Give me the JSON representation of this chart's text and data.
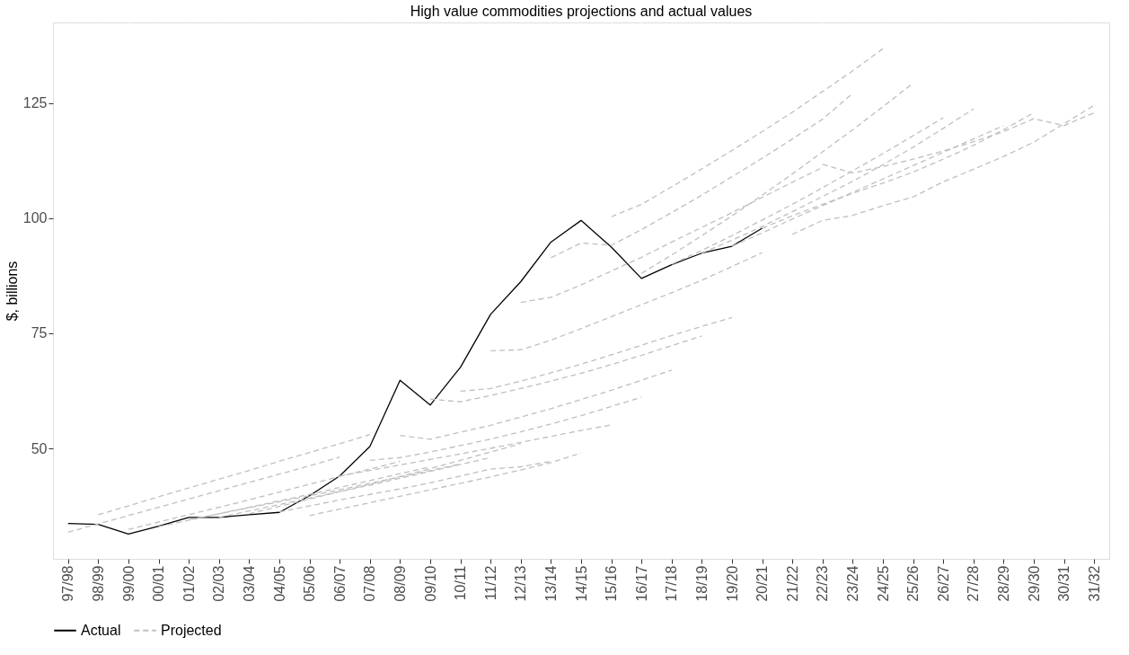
{
  "chart_data": {
    "type": "line",
    "title": "High value commodities projections and actual values",
    "ylabel": "$, billions",
    "categories": [
      "97/98",
      "98/99",
      "99/00",
      "00/01",
      "01/02",
      "02/03",
      "03/04",
      "04/05",
      "05/06",
      "06/07",
      "07/08",
      "08/09",
      "09/10",
      "10/11",
      "11/12",
      "12/13",
      "13/14",
      "14/15",
      "15/16",
      "16/17",
      "17/18",
      "18/19",
      "19/20",
      "20/21",
      "21/22",
      "22/23",
      "23/24",
      "24/25",
      "25/26",
      "26/27",
      "27/28",
      "28/29",
      "29/30",
      "30/31",
      "31/32"
    ],
    "ylim": [
      26,
      142.5
    ],
    "yticks": [
      50,
      75,
      100,
      125
    ],
    "grid": true,
    "legend": "bottom",
    "series": [
      {
        "name": "Actual",
        "color": "#000000",
        "line_style": "solid",
        "x": [
          "97/98",
          "98/99",
          "99/00",
          "00/01",
          "01/02",
          "02/03",
          "03/04",
          "04/05",
          "05/06",
          "06/07",
          "07/08",
          "08/09",
          "09/10",
          "10/11",
          "11/12",
          "12/13",
          "13/14",
          "14/15",
          "15/16",
          "16/17",
          "17/18",
          "18/19",
          "19/20",
          "20/21"
        ],
        "values": [
          33.7,
          33.5,
          31.4,
          33.1,
          35.0,
          35.0,
          35.6,
          36.1,
          39.7,
          44.0,
          50.4,
          64.8,
          59.4,
          67.6,
          79.1,
          86.2,
          94.8,
          99.5,
          93.7,
          86.9,
          89.9,
          92.4,
          93.9,
          97.8
        ]
      },
      {
        "name": "Projected",
        "color": "#bfbfbf",
        "line_style": "dashed",
        "x": [
          "97/98",
          "98/99",
          "99/00",
          "00/01",
          "01/02",
          "02/03",
          "03/04",
          "04/05",
          "05/06",
          "06/07"
        ],
        "values": [
          31.8,
          33.6,
          35.4,
          37.2,
          39.0,
          40.8,
          42.6,
          44.4,
          46.2,
          48.1
        ]
      },
      {
        "color": "#bfbfbf",
        "line_style": "dashed",
        "x": [
          "98/99",
          "99/00",
          "00/01",
          "01/02",
          "02/03",
          "03/04",
          "04/05",
          "05/06",
          "06/07",
          "07/08"
        ],
        "values": [
          35.6,
          37.5,
          39.5,
          41.4,
          43.3,
          45.2,
          47.2,
          49.1,
          51.0,
          53.0
        ]
      },
      {
        "color": "#bfbfbf",
        "line_style": "dashed",
        "x": [
          "99/00",
          "00/01",
          "01/02",
          "02/03",
          "03/04",
          "04/05",
          "05/06",
          "06/07",
          "07/08",
          "08/09"
        ],
        "values": [
          32.4,
          34.0,
          35.6,
          37.2,
          38.8,
          40.5,
          42.2,
          43.9,
          45.5,
          47.2
        ]
      },
      {
        "color": "#bfbfbf",
        "line_style": "dashed",
        "x": [
          "00/01",
          "01/02",
          "02/03",
          "03/04",
          "04/05",
          "05/06",
          "06/07",
          "07/08",
          "08/09",
          "09/10"
        ],
        "values": [
          33.0,
          34.4,
          35.8,
          37.2,
          38.6,
          40.0,
          41.5,
          43.0,
          44.5,
          46.0
        ]
      },
      {
        "color": "#bfbfbf",
        "line_style": "dashed",
        "x": [
          "01/02",
          "02/03",
          "03/04",
          "04/05",
          "05/06",
          "06/07",
          "07/08",
          "08/09",
          "09/10",
          "10/11"
        ],
        "values": [
          34.5,
          35.8,
          37.1,
          38.4,
          39.7,
          41.0,
          42.4,
          43.8,
          45.2,
          46.6
        ]
      },
      {
        "color": "#bfbfbf",
        "line_style": "dashed",
        "x": [
          "02/03",
          "03/04",
          "04/05",
          "05/06",
          "06/07",
          "07/08",
          "08/09",
          "09/10",
          "10/11",
          "11/12"
        ],
        "values": [
          35.0,
          36.4,
          37.8,
          39.2,
          40.6,
          42.0,
          43.5,
          45.0,
          46.5,
          48.0
        ]
      },
      {
        "color": "#bfbfbf",
        "line_style": "dashed",
        "x": [
          "03/04",
          "04/05",
          "05/06",
          "06/07",
          "07/08",
          "08/09",
          "09/10",
          "10/11",
          "11/12",
          "12/13"
        ],
        "values": [
          35.8,
          37.4,
          39.0,
          40.6,
          42.2,
          43.9,
          45.6,
          47.4,
          49.2,
          51.0
        ]
      },
      {
        "color": "#bfbfbf",
        "line_style": "dashed",
        "x": [
          "04/05",
          "05/06",
          "06/07",
          "07/08",
          "08/09",
          "09/10",
          "10/11",
          "11/12",
          "12/13",
          "13/14"
        ],
        "values": [
          36.2,
          37.5,
          38.8,
          40.0,
          41.2,
          42.5,
          44.0,
          45.5,
          46.0,
          47.2
        ]
      },
      {
        "color": "#bfbfbf",
        "line_style": "dashed",
        "x": [
          "05/06",
          "06/07",
          "07/08",
          "08/09",
          "09/10",
          "10/11",
          "11/12",
          "12/13",
          "13/14",
          "14/15"
        ],
        "values": [
          35.4,
          36.8,
          38.2,
          39.6,
          41.0,
          42.4,
          43.8,
          45.3,
          46.9,
          49.0
        ]
      },
      {
        "color": "#bfbfbf",
        "line_style": "dashed",
        "x": [
          "06/07",
          "07/08",
          "08/09",
          "09/10",
          "10/11",
          "11/12",
          "12/13",
          "13/14",
          "14/15",
          "15/16"
        ],
        "values": [
          44.0,
          45.2,
          46.4,
          47.6,
          48.8,
          50.0,
          51.3,
          52.6,
          53.9,
          55.1
        ]
      },
      {
        "color": "#bfbfbf",
        "line_style": "dashed",
        "x": [
          "07/08",
          "08/09",
          "09/10",
          "10/11",
          "11/12",
          "12/13",
          "13/14",
          "14/15",
          "15/16",
          "16/17"
        ],
        "values": [
          47.4,
          48.0,
          49.2,
          50.6,
          52.0,
          53.6,
          55.3,
          57.1,
          59.1,
          61.1
        ]
      },
      {
        "color": "#bfbfbf",
        "line_style": "dashed",
        "x": [
          "08/09",
          "09/10",
          "10/11",
          "11/12",
          "12/13",
          "13/14",
          "14/15",
          "15/16",
          "16/17",
          "17/18"
        ],
        "values": [
          52.8,
          52.0,
          53.5,
          55.0,
          56.8,
          58.6,
          60.6,
          62.6,
          64.8,
          67.0
        ]
      },
      {
        "color": "#bfbfbf",
        "line_style": "dashed",
        "x": [
          "09/10",
          "10/11",
          "11/12",
          "12/13",
          "13/14",
          "14/15",
          "15/16",
          "16/17",
          "17/18",
          "18/19"
        ],
        "values": [
          60.7,
          60.1,
          61.5,
          63.0,
          64.6,
          66.3,
          68.2,
          70.2,
          72.3,
          74.4
        ]
      },
      {
        "color": "#bfbfbf",
        "line_style": "dashed",
        "x": [
          "10/11",
          "11/12",
          "12/13",
          "13/14",
          "14/15",
          "15/16",
          "16/17",
          "17/18",
          "18/19",
          "19/20"
        ],
        "values": [
          62.4,
          63.0,
          64.6,
          66.4,
          68.3,
          70.3,
          72.4,
          74.5,
          76.5,
          78.4
        ]
      },
      {
        "color": "#bfbfbf",
        "line_style": "dashed",
        "x": [
          "11/12",
          "12/13",
          "13/14",
          "14/15",
          "15/16",
          "16/17",
          "17/18",
          "18/19",
          "19/20",
          "20/21"
        ],
        "values": [
          71.2,
          71.4,
          73.5,
          76.0,
          78.6,
          81.2,
          83.8,
          86.5,
          89.5,
          92.5
        ]
      },
      {
        "color": "#bfbfbf",
        "line_style": "dashed",
        "x": [
          "12/13",
          "13/14",
          "14/15",
          "15/16",
          "16/17",
          "17/18",
          "18/19",
          "19/20",
          "20/21",
          "21/22",
          "22/23"
        ],
        "values": [
          81.7,
          82.8,
          85.5,
          88.5,
          91.5,
          94.8,
          98.0,
          101.2,
          104.5,
          107.8,
          111.0
        ]
      },
      {
        "color": "#bfbfbf",
        "line_style": "dashed",
        "x": [
          "13/14",
          "14/15",
          "15/16",
          "16/17",
          "17/18",
          "18/19",
          "19/20",
          "20/21",
          "21/22",
          "22/23",
          "23/24"
        ],
        "values": [
          91.4,
          94.6,
          94.1,
          97.5,
          101.2,
          105.0,
          109.0,
          113.0,
          117.2,
          121.5,
          127.1
        ]
      },
      {
        "color": "#bfbfbf",
        "line_style": "dashed",
        "x": [
          "15/16",
          "16/17",
          "17/18",
          "18/19",
          "19/20",
          "20/21",
          "21/22",
          "22/23",
          "23/24",
          "24/25"
        ],
        "values": [
          100.3,
          103.0,
          106.8,
          110.7,
          114.7,
          118.8,
          123.0,
          127.5,
          132.0,
          136.8
        ]
      },
      {
        "color": "#bfbfbf",
        "line_style": "dashed",
        "x": [
          "16/17",
          "17/18",
          "18/19",
          "19/20",
          "20/21",
          "21/22",
          "22/23",
          "23/24",
          "24/25",
          "25/26"
        ],
        "values": [
          88.0,
          92.0,
          96.2,
          100.5,
          105.0,
          109.6,
          114.4,
          119.2,
          124.2,
          129.3
        ]
      },
      {
        "color": "#bfbfbf",
        "line_style": "dashed",
        "x": [
          "17/18",
          "18/19",
          "19/20",
          "20/21",
          "21/22",
          "22/23",
          "23/24",
          "24/25",
          "25/26",
          "26/27"
        ],
        "values": [
          90.0,
          93.0,
          96.2,
          99.6,
          103.0,
          106.6,
          110.3,
          114.0,
          117.9,
          121.8
        ]
      },
      {
        "color": "#bfbfbf",
        "line_style": "dashed",
        "x": [
          "18/19",
          "19/20",
          "20/21",
          "21/22",
          "22/23",
          "23/24",
          "24/25",
          "25/26",
          "26/27",
          "27/28"
        ],
        "values": [
          92.4,
          95.2,
          98.2,
          101.4,
          104.7,
          108.0,
          111.6,
          115.4,
          119.5,
          123.7
        ]
      },
      {
        "color": "#bfbfbf",
        "line_style": "dashed",
        "x": [
          "19/20",
          "20/21",
          "21/22",
          "22/23",
          "23/24",
          "24/25",
          "25/26",
          "26/27",
          "27/28",
          "28/29"
        ],
        "values": [
          93.9,
          96.8,
          99.8,
          102.7,
          105.6,
          108.5,
          111.4,
          114.3,
          117.2,
          120.1
        ]
      },
      {
        "color": "#bfbfbf",
        "line_style": "dashed",
        "x": [
          "20/21",
          "21/22",
          "22/23",
          "23/24",
          "24/25",
          "25/26",
          "26/27",
          "27/28",
          "28/29",
          "29/30"
        ],
        "values": [
          97.8,
          100.5,
          103.0,
          105.4,
          107.6,
          110.0,
          112.8,
          115.8,
          119.2,
          122.9
        ]
      },
      {
        "color": "#bfbfbf",
        "line_style": "dashed",
        "x": [
          "21/22",
          "22/23",
          "23/24",
          "24/25",
          "25/26",
          "26/27",
          "27/28",
          "28/29",
          "29/30",
          "30/31",
          "31/32"
        ],
        "values": [
          96.5,
          99.5,
          100.6,
          102.7,
          104.6,
          107.9,
          110.6,
          113.4,
          116.5,
          120.5,
          124.5
        ]
      },
      {
        "color": "#bfbfbf",
        "line_style": "dashed",
        "x": [
          "22/23",
          "23/24",
          "24/25",
          "25/26",
          "26/27",
          "27/28",
          "28/29",
          "29/30",
          "30/31",
          "31/32"
        ],
        "values": [
          111.7,
          109.8,
          111.2,
          112.8,
          114.6,
          116.6,
          118.8,
          121.6,
          120.1,
          122.9
        ]
      }
    ]
  }
}
